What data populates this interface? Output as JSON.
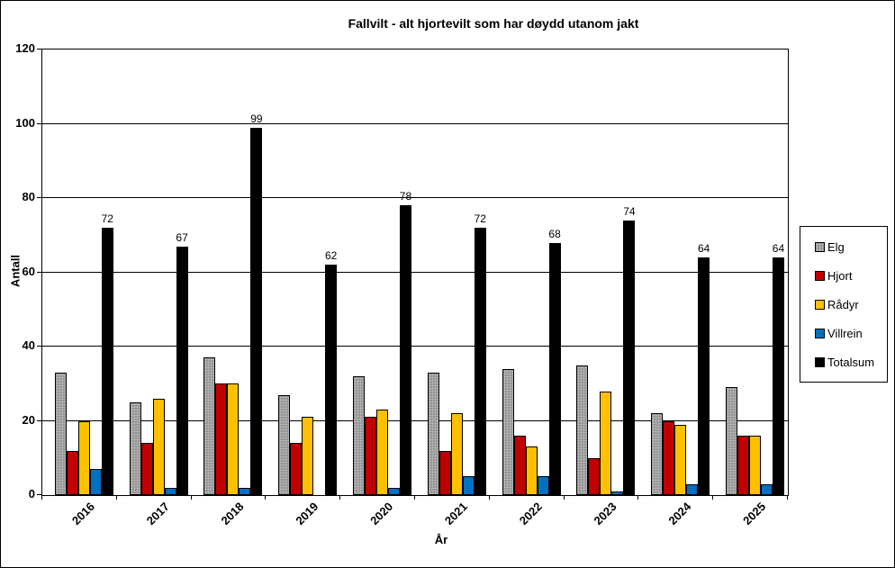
{
  "chart_data": {
    "type": "bar",
    "title": "Fallvilt - alt hjortevilt som har døydd utanom jakt",
    "xlabel": "År",
    "ylabel": "Antall",
    "ylim": [
      0,
      120
    ],
    "ytick_step": 20,
    "yticks": [
      0,
      20,
      40,
      60,
      80,
      100,
      120
    ],
    "grid": true,
    "legend_position": "right",
    "plot_background": "#ffffff",
    "categories": [
      "2016",
      "2017",
      "2018",
      "2019",
      "2020",
      "2021",
      "2022",
      "2023",
      "2024",
      "2025"
    ],
    "series": [
      {
        "name": "Elg",
        "color": "#8f8f8f",
        "pattern": "dotted",
        "values": [
          33,
          25,
          37,
          27,
          32,
          33,
          34,
          35,
          22,
          29
        ]
      },
      {
        "name": "Hjort",
        "color": "#c00000",
        "values": [
          12,
          14,
          30,
          14,
          21,
          12,
          16,
          10,
          20,
          16
        ]
      },
      {
        "name": "Rådyr",
        "color": "#ffc000",
        "values": [
          20,
          26,
          30,
          21,
          23,
          22,
          13,
          28,
          19,
          16
        ]
      },
      {
        "name": "Villrein",
        "color": "#0070c0",
        "values": [
          7,
          2,
          2,
          0,
          2,
          5,
          5,
          1,
          3,
          3
        ]
      },
      {
        "name": "Totalsum",
        "color": "#000000",
        "values": [
          72,
          67,
          99,
          62,
          78,
          72,
          68,
          74,
          64,
          64
        ],
        "data_labels": true
      }
    ]
  }
}
